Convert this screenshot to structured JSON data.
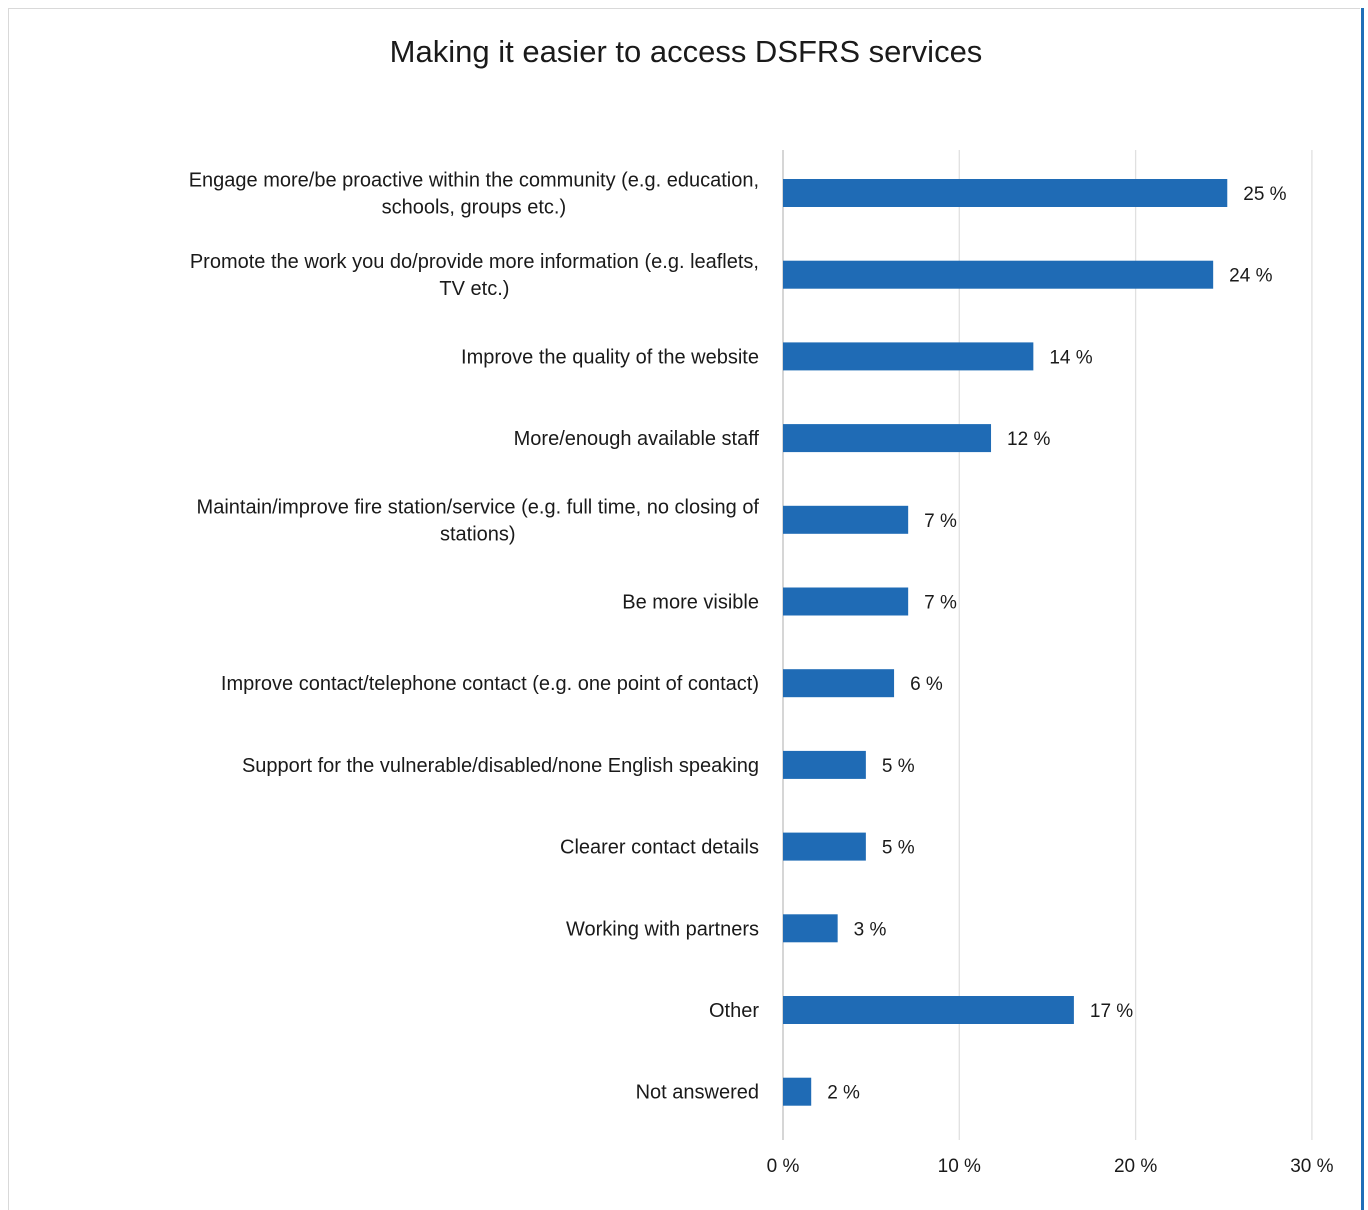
{
  "chart_data": {
    "type": "bar",
    "orientation": "horizontal",
    "title": "Making it easier to access DSFRS services",
    "categories": [
      [
        "Engage more/be proactive within the community (e.g. education,",
        "schools, groups etc.)"
      ],
      [
        "Promote the work you do/provide more information (e.g. leaflets,",
        "TV etc.)"
      ],
      [
        "Improve the quality of the website"
      ],
      [
        "More/enough available staff"
      ],
      [
        "Maintain/improve fire station/service (e.g. full time, no closing of",
        "stations)"
      ],
      [
        "Be more visible"
      ],
      [
        "Improve contact/telephone contact (e.g. one point of contact)"
      ],
      [
        "Support for the vulnerable/disabled/none English speaking"
      ],
      [
        "Clearer contact details"
      ],
      [
        "Working with partners"
      ],
      [
        "Other"
      ],
      [
        "Not answered"
      ]
    ],
    "values": [
      25.2,
      24.4,
      14.2,
      11.8,
      7.1,
      7.1,
      6.3,
      4.7,
      4.7,
      3.1,
      16.5,
      1.6
    ],
    "value_labels": [
      "25 %",
      "24 %",
      "14 %",
      "12 %",
      "7 %",
      "7 %",
      "6 %",
      "5 %",
      "5 %",
      "3 %",
      "17 %",
      "2 %"
    ],
    "xlim": [
      0,
      30
    ],
    "xticks": [
      0,
      10,
      20,
      30
    ],
    "xtick_labels": [
      "0 %",
      "10 %",
      "20 %",
      "30 %"
    ],
    "grid": true,
    "legend": "none",
    "bar_color": "#1f6bb5",
    "grid_color": "#e0e0e0"
  }
}
